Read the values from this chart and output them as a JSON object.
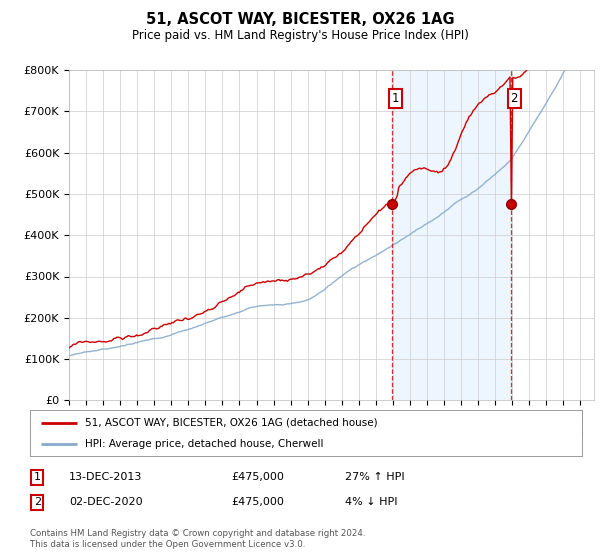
{
  "title": "51, ASCOT WAY, BICESTER, OX26 1AG",
  "subtitle": "Price paid vs. HM Land Registry's House Price Index (HPI)",
  "ylabel_ticks": [
    "£0",
    "£100K",
    "£200K",
    "£300K",
    "£400K",
    "£500K",
    "£600K",
    "£700K",
    "£800K"
  ],
  "ytick_values": [
    0,
    100000,
    200000,
    300000,
    400000,
    500000,
    600000,
    700000,
    800000
  ],
  "ylim": [
    0,
    800000
  ],
  "red_color": "#cc0000",
  "blue_color": "#88aacc",
  "marker1_year": 2013.95,
  "marker1_value": 475000,
  "marker2_year": 2020.92,
  "marker2_value": 475000,
  "marker1_label": "1",
  "marker2_label": "2",
  "legend_line1": "51, ASCOT WAY, BICESTER, OX26 1AG (detached house)",
  "legend_line2": "HPI: Average price, detached house, Cherwell",
  "table_row1": [
    "1",
    "13-DEC-2013",
    "£475,000",
    "27% ↑ HPI"
  ],
  "table_row2": [
    "2",
    "02-DEC-2020",
    "£475,000",
    "4% ↓ HPI"
  ],
  "footer": "Contains HM Land Registry data © Crown copyright and database right 2024.\nThis data is licensed under the Open Government Licence v3.0.",
  "background_color": "#ffffff",
  "plot_bg_color": "#ffffff",
  "grid_color": "#cccccc",
  "dashed_line_color": "#cc0000",
  "shade_color": "#ddeeff",
  "shade_alpha": 0.5
}
